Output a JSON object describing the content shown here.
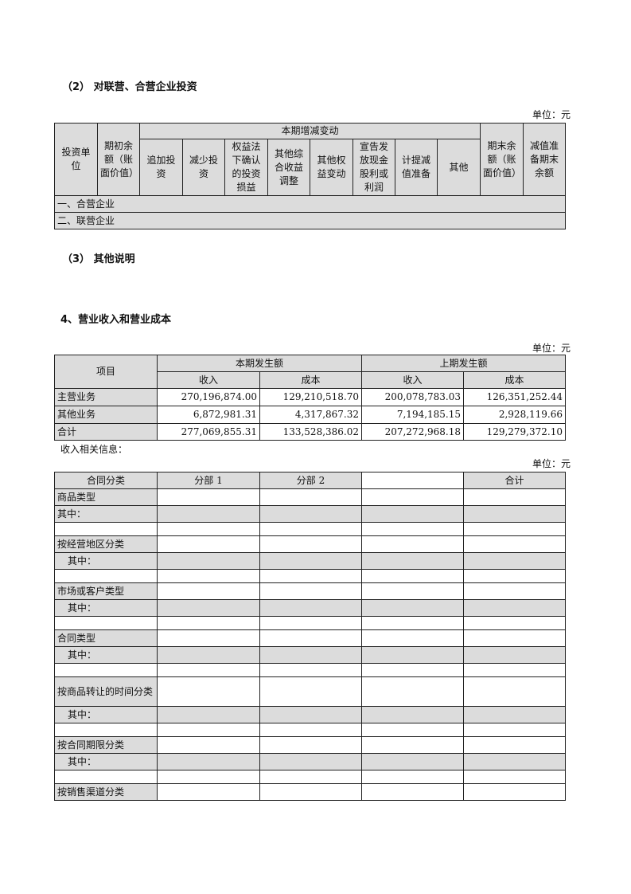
{
  "section_2": {
    "heading": "（2） 对联营、合营企业投资",
    "unit": "单位：元",
    "headers": {
      "investee": "投资单位",
      "opening": "期初余额（账面价值）",
      "change_group": "本期增减变动",
      "sub": [
        "追加投资",
        "减少投资",
        "权益法下确认的投资损益",
        "其他综合收益调整",
        "其他权益变动",
        "宣告发放现金股利或利润",
        "计提减值准备",
        "其他"
      ],
      "closing": "期末余额（账面价值）",
      "impairment": "减值准备期末余额"
    },
    "rows": [
      "一、合营企业",
      "二、联营企业"
    ]
  },
  "section_3": {
    "heading": "（3） 其他说明"
  },
  "section_4": {
    "heading": "4、营业收入和营业成本",
    "unit": "单位：元",
    "headers": {
      "item": "项目",
      "current": "本期发生额",
      "previous": "上期发生额",
      "revenue": "收入",
      "cost": "成本"
    },
    "rows": [
      {
        "label": "主营业务",
        "values": [
          "270,196,874.00",
          "129,210,518.70",
          "200,078,783.03",
          "126,351,252.44"
        ]
      },
      {
        "label": "其他业务",
        "values": [
          "6,872,981.31",
          "4,317,867.32",
          "7,194,185.15",
          "2,928,119.66"
        ]
      },
      {
        "label": "合计",
        "values": [
          "277,069,855.31",
          "133,528,386.02",
          "207,272,968.18",
          "129,279,372.10"
        ]
      }
    ],
    "note": "收入相关信息：",
    "unit2": "单位：元",
    "contract_table": {
      "headers": [
        "合同分类",
        "分部 1",
        "分部 2",
        "",
        "合计"
      ],
      "rows": [
        "商品类型",
        "其中：",
        "",
        "按经营地区分类",
        "其中：",
        "",
        "市场或客户类型",
        "其中：",
        "",
        "合同类型",
        "其中：",
        "",
        "按商品转让的时间分类",
        "其中：",
        "",
        "按合同期限分类",
        "其中：",
        "",
        "按销售渠道分类"
      ]
    }
  }
}
